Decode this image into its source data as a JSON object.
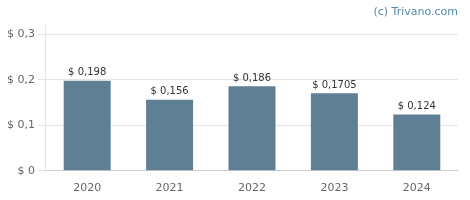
{
  "chart_data": {
    "type": "bar",
    "categories": [
      "2020",
      "2021",
      "2022",
      "2023",
      "2024"
    ],
    "values": [
      0.198,
      0.156,
      0.186,
      0.1705,
      0.124
    ],
    "value_labels": [
      "$ 0,198",
      "$ 0,156",
      "$ 0,186",
      "$ 0,1705",
      "$ 0,124"
    ],
    "data_labels": true,
    "color": "#5f7f94",
    "ylim": [
      0,
      0.32
    ],
    "yticks": [
      {
        "value": 0,
        "label": "$ 0"
      },
      {
        "value": 0.1,
        "label": "$ 0,1"
      },
      {
        "value": 0.2,
        "label": "$ 0,2"
      },
      {
        "value": 0.3,
        "label": "$ 0,3"
      }
    ],
    "grid": true,
    "annotations": [
      "(c) Trivano.com"
    ]
  }
}
